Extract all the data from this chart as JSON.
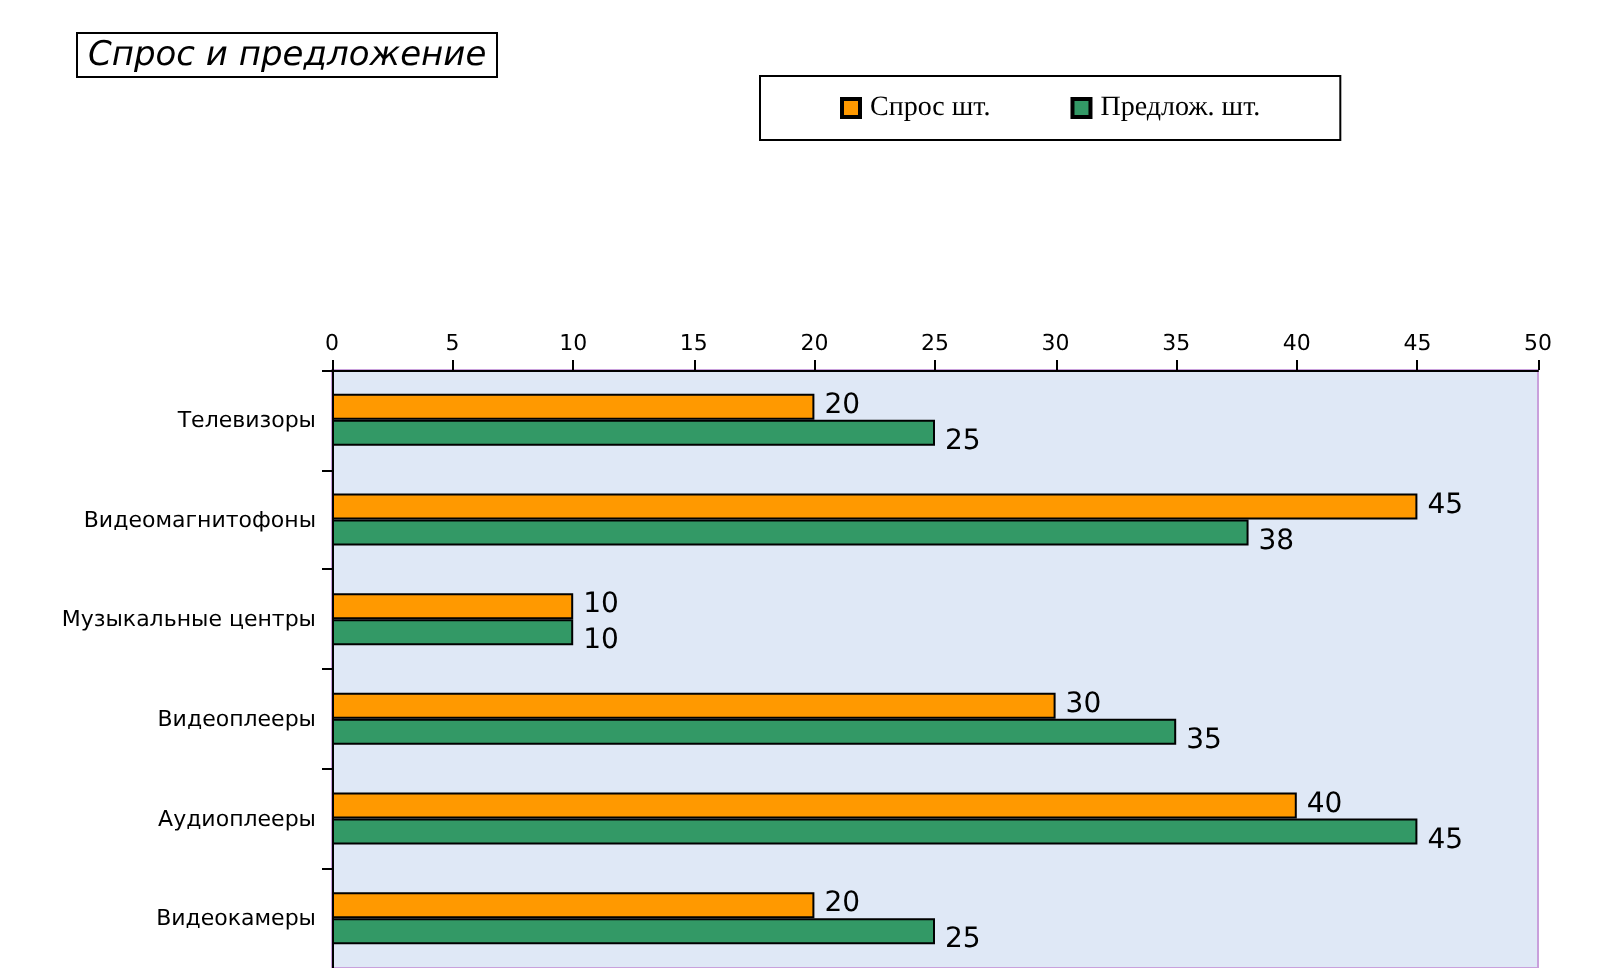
{
  "chart_data": {
    "type": "bar",
    "orientation": "horizontal",
    "title": "Спрос и предложение",
    "categories": [
      "Телевизоры",
      "Видеомагнитофоны",
      "Музыкальные центры",
      "Видеоплееры",
      "Аудиоплееры",
      "Видеокамеры"
    ],
    "series": [
      {
        "name": "Спрос шт.",
        "color": "#ff9900",
        "values": [
          20,
          45,
          10,
          30,
          40,
          20
        ]
      },
      {
        "name": "Предлож. шт.",
        "color": "#339966",
        "values": [
          25,
          38,
          10,
          35,
          45,
          25
        ]
      }
    ],
    "xlim": [
      0,
      50
    ],
    "xticks": [
      0,
      5,
      10,
      15,
      20,
      25,
      30,
      35,
      40,
      45,
      50
    ],
    "data_labels": true,
    "grid": false,
    "legend": "top right"
  }
}
